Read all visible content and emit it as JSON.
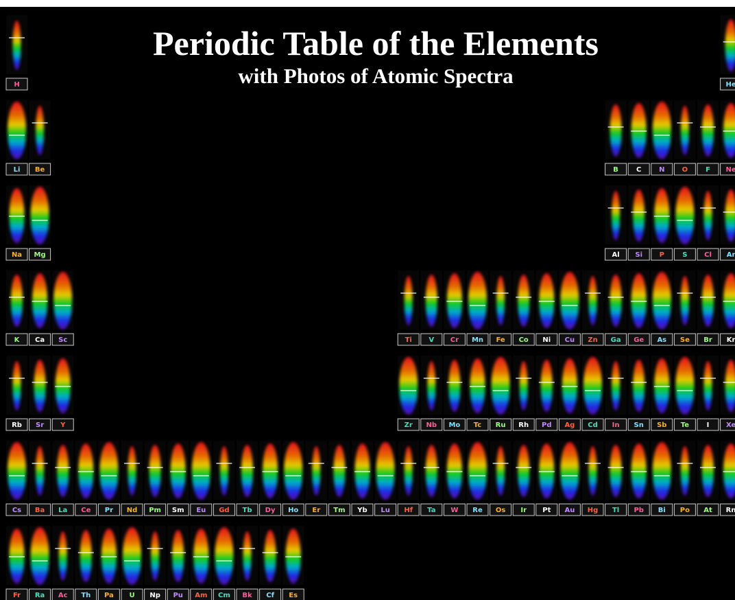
{
  "title": "Periodic Table of the Elements",
  "subtitle": "with Photos of Atomic Spectra",
  "periods": [
    [
      "H",
      "He"
    ],
    [
      "Li",
      "Be",
      "B",
      "C",
      "N",
      "O",
      "F",
      "Ne"
    ],
    [
      "Na",
      "Mg",
      "Al",
      "Si",
      "P",
      "S",
      "Cl",
      "Ar"
    ],
    [
      "K",
      "Ca",
      "Sc",
      "Ti",
      "V",
      "Cr",
      "Mn",
      "Fe",
      "Co",
      "Ni",
      "Cu",
      "Zn",
      "Ga",
      "Ge",
      "As",
      "Se",
      "Br",
      "Kr"
    ],
    [
      "Rb",
      "Sr",
      "Y",
      "Zr",
      "Nb",
      "Mo",
      "Tc",
      "Ru",
      "Rh",
      "Pd",
      "Ag",
      "Cd",
      "In",
      "Sn",
      "Sb",
      "Te",
      "I",
      "Xe"
    ],
    [
      "Cs",
      "Ba",
      "La",
      "Ce",
      "Pr",
      "Nd",
      "Pm",
      "Sm",
      "Eu",
      "Gd",
      "Tb",
      "Dy",
      "Ho",
      "Er",
      "Tm",
      "Yb",
      "Lu",
      "Hf",
      "Ta",
      "W",
      "Re",
      "Os",
      "Ir",
      "Pt",
      "Au",
      "Hg",
      "Tl",
      "Pb",
      "Bi",
      "Po",
      "At",
      "Rn"
    ],
    [
      "Fr",
      "Ra",
      "Ac",
      "Th",
      "Pa",
      "U",
      "Np",
      "Pu",
      "Am",
      "Cm",
      "Bk",
      "Cf",
      "Es"
    ]
  ]
}
